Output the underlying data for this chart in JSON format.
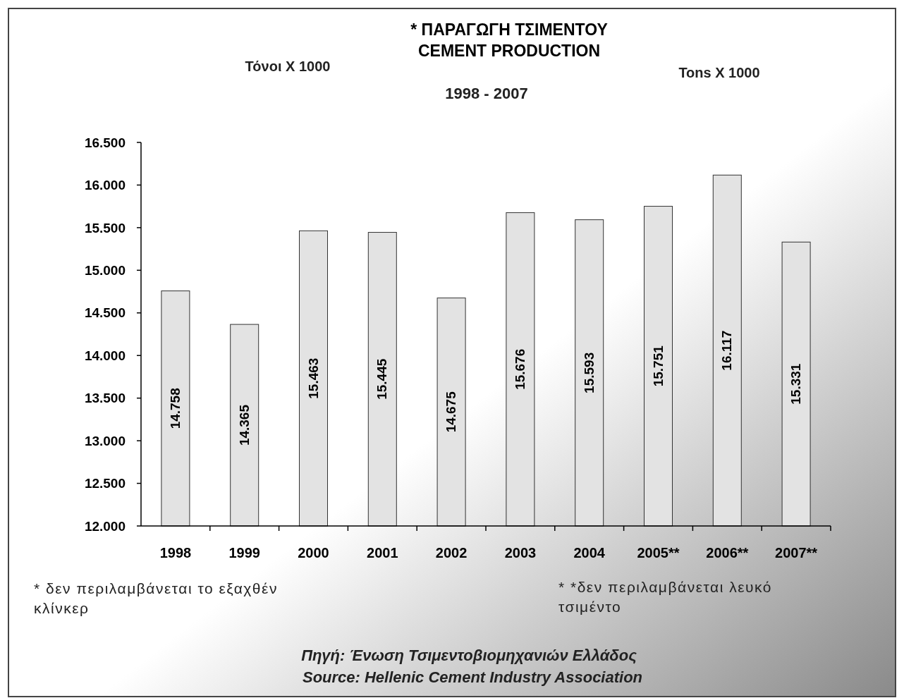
{
  "chart_data": {
    "type": "bar",
    "title": "* ΠΑΡΑΓΩΓΗ ΤΣΙΜΕΝΤΟΥ",
    "subtitle": "CEMENT PRODUCTION",
    "categories": [
      "1998",
      "1999",
      "2000",
      "2001",
      "2002",
      "2003",
      "2004",
      "2005**",
      "2006**",
      "2007**"
    ],
    "values": [
      14758,
      14365,
      15463,
      15445,
      14675,
      15676,
      15593,
      15751,
      16117,
      15331
    ],
    "value_labels": [
      "14.758",
      "14.365",
      "15.463",
      "15.445",
      "14.675",
      "15.676",
      "15.593",
      "15.751",
      "16.117",
      "15.331"
    ],
    "color": "#e3e3e3",
    "ylim": [
      12000,
      16500
    ],
    "yticks": [
      {
        "value": 12000,
        "label": "12.000"
      },
      {
        "value": 12500,
        "label": "12.500"
      },
      {
        "value": 13000,
        "label": "13.000"
      },
      {
        "value": 13500,
        "label": "13.500"
      },
      {
        "value": 14000,
        "label": "14.000"
      },
      {
        "value": 14500,
        "label": "14.500"
      },
      {
        "value": 15000,
        "label": "15.000"
      },
      {
        "value": 15500,
        "label": "15.500"
      },
      {
        "value": 16000,
        "label": "16.000"
      },
      {
        "value": 16500,
        "label": "16.500"
      }
    ],
    "annotations": [
      "1998 - 2007",
      "Τόνοι X 1000",
      "Tons X 1000",
      "* δεν περιλαμβάνεται το εξαχθέν κλίνκερ",
      "* *δεν περιλαμβάνεται λευκό τσιμέντο",
      "Πηγή: Ένωση Τσιμεντοβιομηχανιών Ελλάδος",
      "Source: Hellenic Cement Industry Association"
    ],
    "grid": false
  }
}
